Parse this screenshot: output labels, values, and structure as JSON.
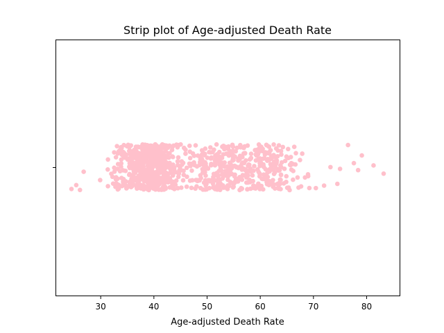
{
  "chart_data": {
    "type": "scatter",
    "subtype": "strip",
    "title": "Strip plot of Age-adjusted Death Rate",
    "xlabel": "Age-adjusted Death Rate",
    "ylabel": "",
    "xlim": [
      21.5,
      86.2
    ],
    "xticks": [
      30,
      40,
      50,
      60,
      70,
      80
    ],
    "grid": false,
    "legend": "none",
    "point_color": "#FFC0CB",
    "distribution": {
      "count": 1000,
      "outliers": [
        78.4,
        79.1,
        81.3,
        83.2,
        76.5,
        75.0,
        77.6,
        73.2,
        72.0,
        74.5
      ],
      "lower_outliers": [
        24.5,
        25.4,
        26.1,
        26.8
      ]
    }
  }
}
